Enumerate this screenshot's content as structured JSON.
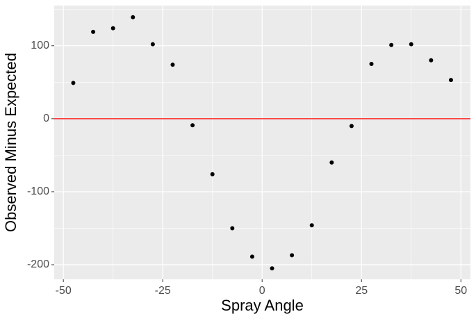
{
  "chart_data": {
    "type": "scatter",
    "x_label": "Spray Angle",
    "y_label": "Observed Minus Expected",
    "x": [
      -47.5,
      -42.5,
      -37.5,
      -32.5,
      -27.5,
      -22.5,
      -17.5,
      -12.5,
      -7.5,
      -2.5,
      2.5,
      7.5,
      12.5,
      17.5,
      22.5,
      27.5,
      32.5,
      37.5,
      42.5,
      47.5
    ],
    "values": [
      49,
      119,
      124,
      139,
      102,
      74,
      -9,
      -76,
      -150,
      -189,
      -205,
      -187,
      -146,
      -60,
      -10,
      75,
      101,
      102,
      80,
      53
    ],
    "color": "#000000",
    "hline": 0,
    "hline_color": "#ff0000",
    "xlim": [
      -52.3,
      52.4
    ],
    "xticks": [
      -50,
      -25,
      0,
      25,
      50
    ],
    "ylim": [
      -220,
      155
    ],
    "yticks": [
      -200,
      -100,
      0,
      100
    ],
    "grid": true
  }
}
